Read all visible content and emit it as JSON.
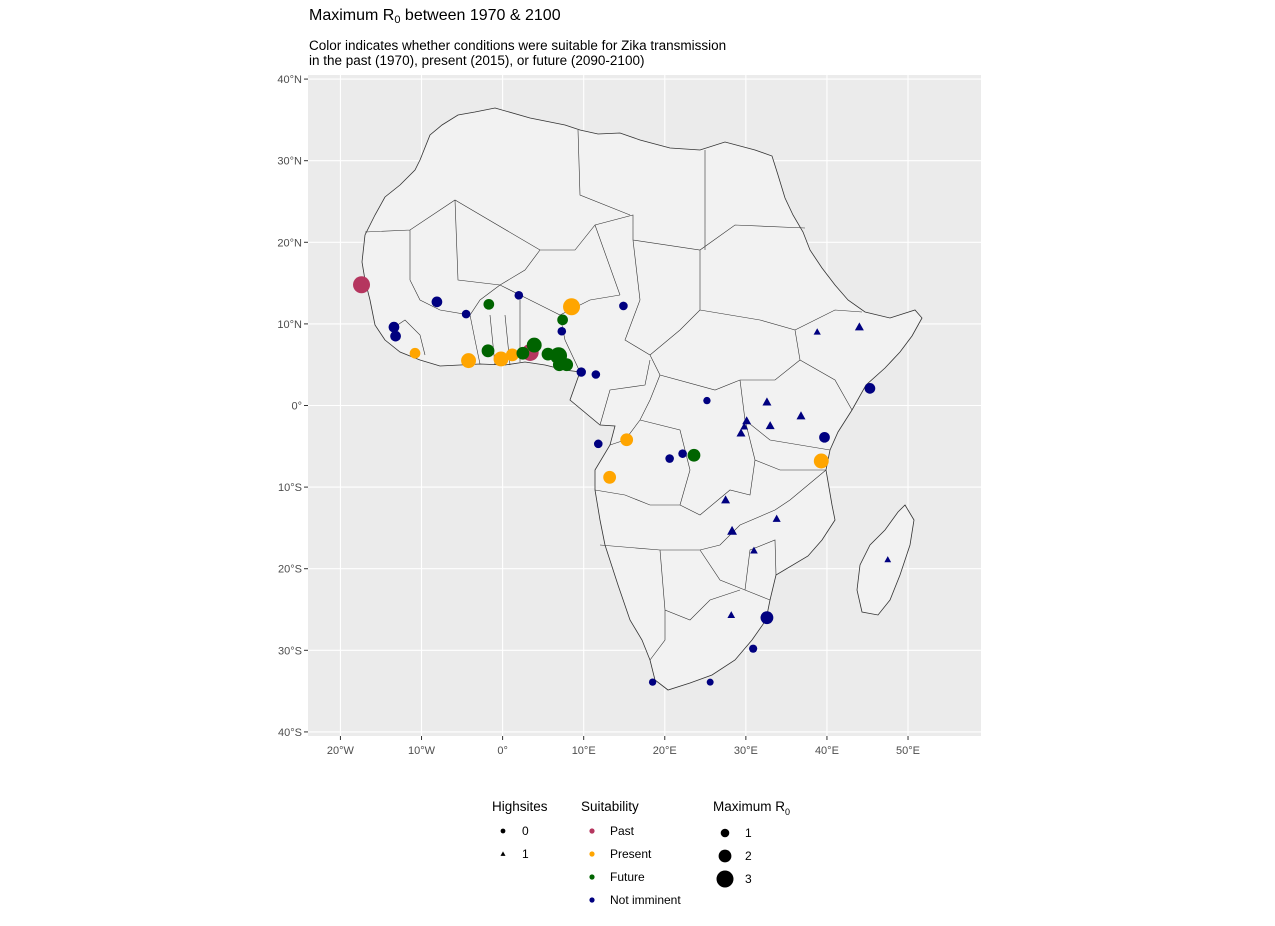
{
  "title": {
    "text": "Maximum R",
    "sub": "0",
    "suffix": " between 1970 & 2100"
  },
  "subtitle": {
    "line1": "Color indicates whether conditions were suitable for Zika transmission",
    "line2": "in the past (1970), present (2015), or future (2090-2100)"
  },
  "colors": {
    "panel": "#ebebeb",
    "grid": "#ffffff",
    "land": "#f2f2f2",
    "border": "#333333",
    "Past": "#b5365f",
    "Present": "#ffa500",
    "Future": "#006400",
    "Not imminent": "#000080"
  },
  "chart_data": {
    "type": "scatter",
    "xlim": [
      -24,
      59
    ],
    "ylim": [
      -40.5,
      40.5
    ],
    "grid": true,
    "x_ticks": [
      -20,
      -10,
      0,
      10,
      20,
      30,
      40,
      50
    ],
    "y_ticks": [
      40,
      30,
      20,
      10,
      0,
      -10,
      -20,
      -30,
      -40
    ],
    "x_tick_labels": [
      "20°W",
      "10°W",
      "0°",
      "10°E",
      "20°E",
      "30°E",
      "40°E",
      "50°E"
    ],
    "y_tick_labels": [
      "40°N",
      "30°N",
      "20°N",
      "10°N",
      "0°",
      "10°S",
      "20°S",
      "30°S",
      "40°S"
    ],
    "points": [
      {
        "lon": -17.4,
        "lat": 14.8,
        "r0": 3,
        "suit": "Past",
        "high": 0
      },
      {
        "lon": 3.4,
        "lat": 6.5,
        "r0": 3,
        "suit": "Past",
        "high": 0
      },
      {
        "lon": -10.8,
        "lat": 6.4,
        "r0": 1.5,
        "suit": "Present",
        "high": 0
      },
      {
        "lon": -4.2,
        "lat": 5.5,
        "r0": 2.5,
        "suit": "Present",
        "high": 0
      },
      {
        "lon": -0.2,
        "lat": 5.7,
        "r0": 2.5,
        "suit": "Present",
        "high": 0
      },
      {
        "lon": 1.2,
        "lat": 6.2,
        "r0": 2,
        "suit": "Present",
        "high": 0
      },
      {
        "lon": 8.5,
        "lat": 12.1,
        "r0": 3,
        "suit": "Present",
        "high": 0
      },
      {
        "lon": 15.3,
        "lat": -4.2,
        "r0": 2,
        "suit": "Present",
        "high": 0
      },
      {
        "lon": 13.2,
        "lat": -8.8,
        "r0": 2,
        "suit": "Present",
        "high": 0
      },
      {
        "lon": 39.3,
        "lat": -6.8,
        "r0": 2.5,
        "suit": "Present",
        "high": 0
      },
      {
        "lon": -1.7,
        "lat": 12.4,
        "r0": 1.5,
        "suit": "Future",
        "high": 0
      },
      {
        "lon": -1.8,
        "lat": 6.7,
        "r0": 2,
        "suit": "Future",
        "high": 0
      },
      {
        "lon": 2.5,
        "lat": 6.4,
        "r0": 2,
        "suit": "Future",
        "high": 0
      },
      {
        "lon": 3.9,
        "lat": 7.4,
        "r0": 2.5,
        "suit": "Future",
        "high": 0
      },
      {
        "lon": 5.6,
        "lat": 6.3,
        "r0": 2,
        "suit": "Future",
        "high": 0
      },
      {
        "lon": 6.9,
        "lat": 6.1,
        "r0": 3,
        "suit": "Future",
        "high": 0
      },
      {
        "lon": 7.0,
        "lat": 5.0,
        "r0": 2,
        "suit": "Future",
        "high": 0
      },
      {
        "lon": 7.9,
        "lat": 5.0,
        "r0": 2,
        "suit": "Future",
        "high": 0
      },
      {
        "lon": 7.4,
        "lat": 10.5,
        "r0": 1.5,
        "suit": "Future",
        "high": 0
      },
      {
        "lon": 23.6,
        "lat": -6.1,
        "r0": 2,
        "suit": "Future",
        "high": 0
      },
      {
        "lon": -8.1,
        "lat": 12.7,
        "r0": 1.5,
        "suit": "Not imminent",
        "high": 0
      },
      {
        "lon": -4.5,
        "lat": 11.2,
        "r0": 1,
        "suit": "Not imminent",
        "high": 0
      },
      {
        "lon": 2.0,
        "lat": 13.5,
        "r0": 1,
        "suit": "Not imminent",
        "high": 0
      },
      {
        "lon": -13.4,
        "lat": 9.6,
        "r0": 1.5,
        "suit": "Not imminent",
        "high": 0
      },
      {
        "lon": -13.2,
        "lat": 8.5,
        "r0": 1.5,
        "suit": "Not imminent",
        "high": 0
      },
      {
        "lon": 7.3,
        "lat": 9.1,
        "r0": 1,
        "suit": "Not imminent",
        "high": 0
      },
      {
        "lon": 9.7,
        "lat": 4.1,
        "r0": 1.2,
        "suit": "Not imminent",
        "high": 0
      },
      {
        "lon": 11.5,
        "lat": 3.8,
        "r0": 1,
        "suit": "Not imminent",
        "high": 0
      },
      {
        "lon": 14.9,
        "lat": 12.2,
        "r0": 1,
        "suit": "Not imminent",
        "high": 0
      },
      {
        "lon": 11.8,
        "lat": -4.7,
        "r0": 1,
        "suit": "Not imminent",
        "high": 0
      },
      {
        "lon": 25.2,
        "lat": 0.6,
        "r0": 0.7,
        "suit": "Not imminent",
        "high": 0
      },
      {
        "lon": 20.6,
        "lat": -6.5,
        "r0": 1,
        "suit": "Not imminent",
        "high": 0
      },
      {
        "lon": 22.2,
        "lat": -5.9,
        "r0": 1,
        "suit": "Not imminent",
        "high": 0
      },
      {
        "lon": 45.3,
        "lat": 2.1,
        "r0": 1.5,
        "suit": "Not imminent",
        "high": 0
      },
      {
        "lon": 39.7,
        "lat": -3.9,
        "r0": 1.5,
        "suit": "Not imminent",
        "high": 0
      },
      {
        "lon": 32.6,
        "lat": -26.0,
        "r0": 2,
        "suit": "Not imminent",
        "high": 0
      },
      {
        "lon": 30.9,
        "lat": -29.8,
        "r0": 0.9,
        "suit": "Not imminent",
        "high": 0
      },
      {
        "lon": 18.5,
        "lat": -33.9,
        "r0": 0.7,
        "suit": "Not imminent",
        "high": 0
      },
      {
        "lon": 25.6,
        "lat": -33.9,
        "r0": 0.6,
        "suit": "Not imminent",
        "high": 0
      },
      {
        "lon": 44.0,
        "lat": 9.6,
        "r0": 1,
        "suit": "Not imminent",
        "high": 1
      },
      {
        "lon": 38.8,
        "lat": 9.0,
        "r0": 0.6,
        "suit": "Not imminent",
        "high": 1
      },
      {
        "lon": 32.6,
        "lat": 0.4,
        "r0": 1,
        "suit": "Not imminent",
        "high": 1
      },
      {
        "lon": 36.8,
        "lat": -1.3,
        "r0": 1,
        "suit": "Not imminent",
        "high": 1
      },
      {
        "lon": 33.0,
        "lat": -2.5,
        "r0": 1,
        "suit": "Not imminent",
        "high": 1
      },
      {
        "lon": 30.1,
        "lat": -1.9,
        "r0": 1,
        "suit": "Not imminent",
        "high": 1
      },
      {
        "lon": 29.8,
        "lat": -2.6,
        "r0": 0.7,
        "suit": "Not imminent",
        "high": 1
      },
      {
        "lon": 29.4,
        "lat": -3.4,
        "r0": 1,
        "suit": "Not imminent",
        "high": 1
      },
      {
        "lon": 27.5,
        "lat": -11.6,
        "r0": 1,
        "suit": "Not imminent",
        "high": 1
      },
      {
        "lon": 28.3,
        "lat": -15.4,
        "r0": 1.2,
        "suit": "Not imminent",
        "high": 1
      },
      {
        "lon": 33.8,
        "lat": -13.9,
        "r0": 0.8,
        "suit": "Not imminent",
        "high": 1
      },
      {
        "lon": 31.0,
        "lat": -17.8,
        "r0": 0.7,
        "suit": "Not imminent",
        "high": 1
      },
      {
        "lon": 28.2,
        "lat": -25.7,
        "r0": 0.7,
        "suit": "Not imminent",
        "high": 1
      },
      {
        "lon": 47.5,
        "lat": -18.9,
        "r0": 0.5,
        "suit": "Not imminent",
        "high": 1
      }
    ]
  },
  "legend": {
    "highsites": {
      "title": "Highsites",
      "items": [
        {
          "label": "0",
          "high": 0
        },
        {
          "label": "1",
          "high": 1
        }
      ]
    },
    "suitability": {
      "title": "Suitability",
      "items": [
        "Past",
        "Present",
        "Future",
        "Not imminent"
      ]
    },
    "maxr0": {
      "title": "Maximum R",
      "sub": "0",
      "items": [
        {
          "label": "1",
          "r0": 1
        },
        {
          "label": "2",
          "r0": 2
        },
        {
          "label": "3",
          "r0": 3
        }
      ]
    }
  }
}
